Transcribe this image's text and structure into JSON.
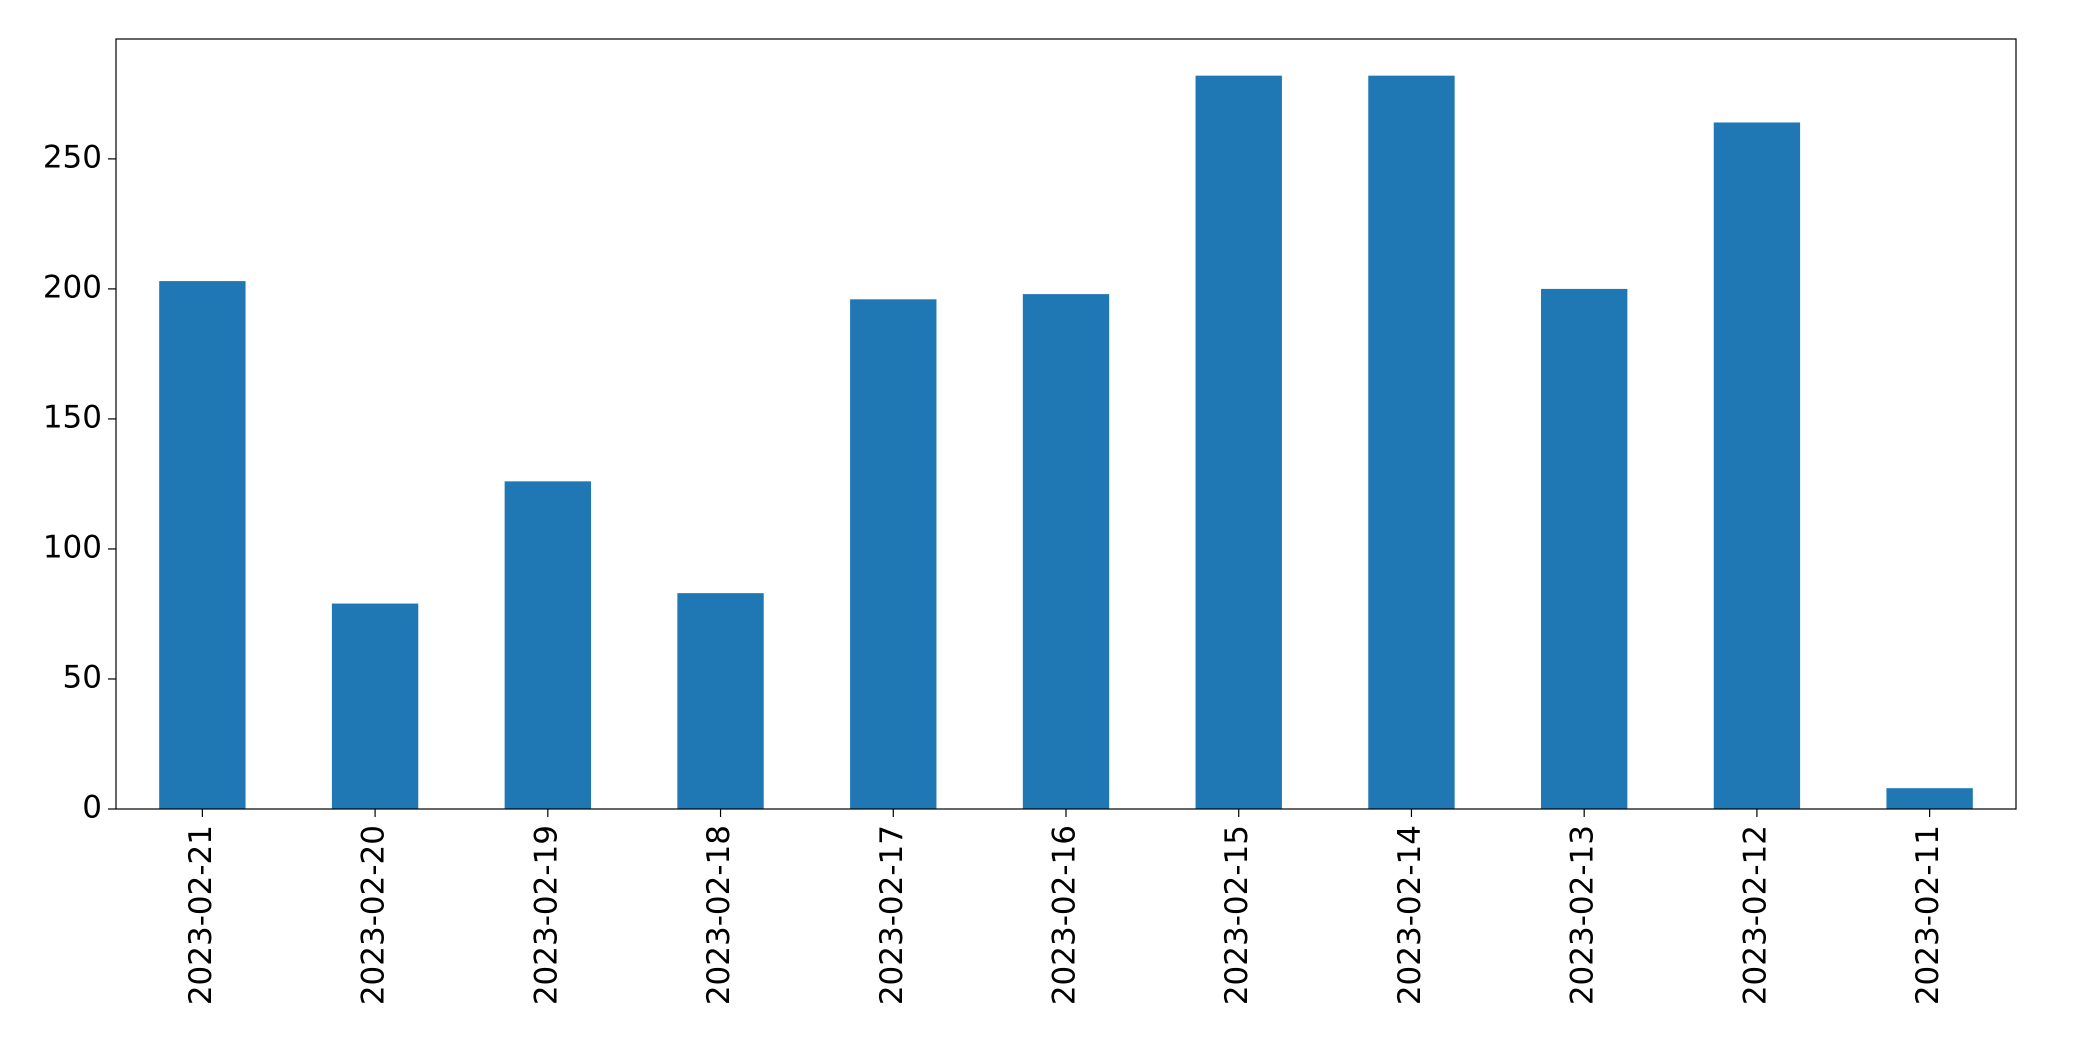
{
  "chart_data": {
    "type": "bar",
    "categories": [
      "2023-02-21",
      "2023-02-20",
      "2023-02-19",
      "2023-02-18",
      "2023-02-17",
      "2023-02-16",
      "2023-02-15",
      "2023-02-14",
      "2023-02-13",
      "2023-02-12",
      "2023-02-11"
    ],
    "values": [
      203,
      79,
      126,
      83,
      196,
      198,
      282,
      282,
      200,
      264,
      8
    ],
    "color": "#1f77b4",
    "ylim": [
      0,
      296.1
    ],
    "yticks": [
      0,
      50,
      100,
      150,
      200,
      250
    ],
    "grid": false
  }
}
